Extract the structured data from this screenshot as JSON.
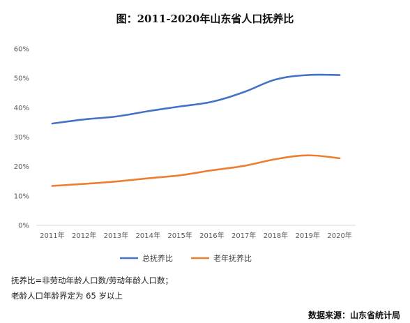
{
  "chart_data": {
    "type": "line",
    "title": "图：2011-2020年山东省人口抚养比",
    "categories": [
      "2011年",
      "2012年",
      "2013年",
      "2014年",
      "2015年",
      "2016年",
      "2017年",
      "2018年",
      "2019年",
      "2020年"
    ],
    "series": [
      {
        "name": "总抚养比",
        "color": "#4472c4",
        "values": [
          34.6,
          36.0,
          37.0,
          38.8,
          40.4,
          42.0,
          45.3,
          49.6,
          51.1,
          51.1
        ]
      },
      {
        "name": "老年抚养比",
        "color": "#ed7d31",
        "values": [
          13.4,
          14.1,
          14.9,
          16.0,
          17.0,
          18.7,
          20.2,
          22.5,
          23.8,
          22.8
        ]
      }
    ],
    "y_ticks": [
      "0%",
      "10%",
      "20%",
      "30%",
      "40%",
      "50%",
      "60%"
    ],
    "ylim": [
      0,
      60
    ],
    "y_unit": "%",
    "grid": false,
    "legend_position": "bottom"
  },
  "notes": {
    "line1": "抚养比=非劳动年龄人口数/劳动年龄人口数；",
    "line2": "老龄人口年龄界定为 65 岁以上"
  },
  "source": "数据来源：山东省统计局"
}
